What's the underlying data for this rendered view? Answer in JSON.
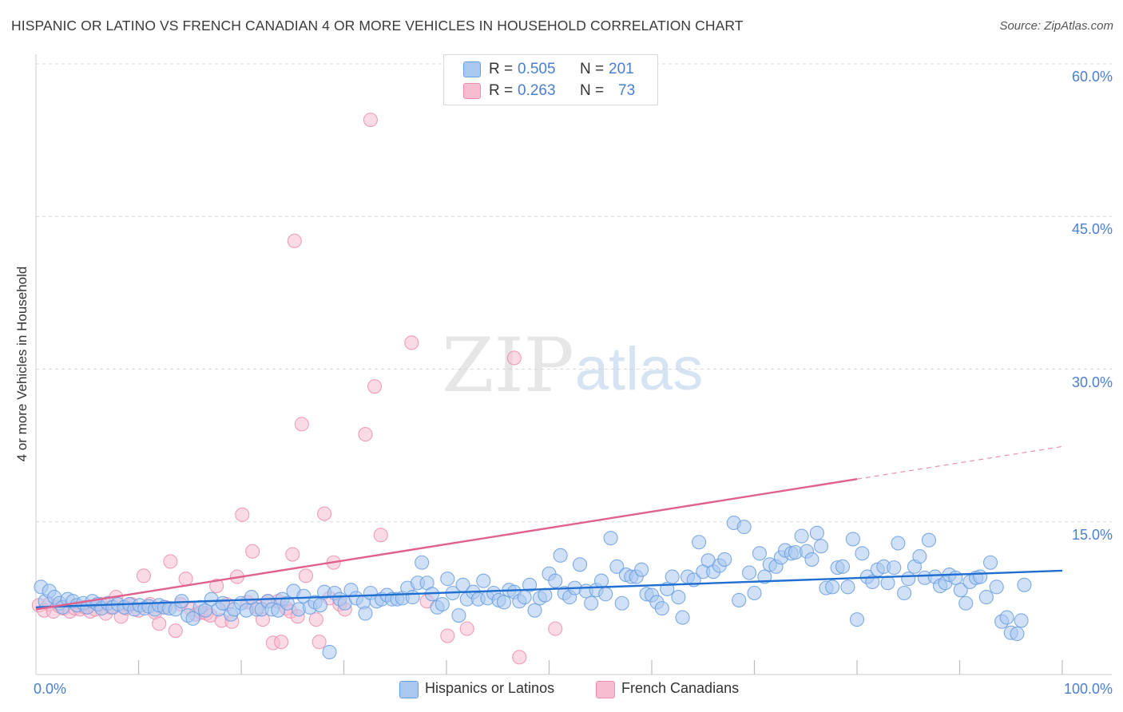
{
  "title": "HISPANIC OR LATINO VS FRENCH CANADIAN 4 OR MORE VEHICLES IN HOUSEHOLD CORRELATION CHART",
  "source": "Source: ZipAtlas.com",
  "watermark": {
    "zip": "ZIP",
    "atlas": "atlas"
  },
  "colors": {
    "blue_fill": "#a9c8f0",
    "blue_stroke": "#6a9ee0",
    "blue_line": "#1f6fd1",
    "pink_fill": "#f6bcd0",
    "pink_stroke": "#ec8fae",
    "pink_line": "#e0608e",
    "axis_text": "#4a7fcf",
    "grid": "#d9d9d9"
  },
  "legend_top": [
    {
      "r_label": "R =",
      "r_value": "0.505",
      "n_label": "N =",
      "n_value": "201"
    },
    {
      "r_label": "R =",
      "r_value": "0.263",
      "n_label": "N =",
      "n_value": "73"
    }
  ],
  "legend_bottom": [
    "Hispanics or Latinos",
    "French Canadians"
  ],
  "chart_data": {
    "type": "scatter",
    "title": "HISPANIC OR LATINO VS FRENCH CANADIAN 4 OR MORE VEHICLES IN HOUSEHOLD CORRELATION CHART",
    "xlabel": "",
    "ylabel": "4 or more Vehicles in Household",
    "xlim": [
      0,
      100
    ],
    "ylim": [
      0,
      60
    ],
    "y_ticks": [
      15,
      30,
      45,
      60
    ],
    "y_tick_labels": [
      "15.0%",
      "30.0%",
      "45.0%",
      "60.0%"
    ],
    "x_tick_labels": [
      "0.0%",
      "100.0%"
    ],
    "grid": true,
    "legend_placement": "top-center",
    "series": [
      {
        "name": "Hispanics or Latinos",
        "r": 0.505,
        "n": 201,
        "trend": {
          "x": [
            0,
            100
          ],
          "y": [
            6.6,
            10.2
          ],
          "solid_until": 100
        },
        "points": [
          [
            0.5,
            8.6
          ],
          [
            0.9,
            7.2
          ],
          [
            1.3,
            8.2
          ],
          [
            1.8,
            7.6
          ],
          [
            2.3,
            7.0
          ],
          [
            2.6,
            6.6
          ],
          [
            3.1,
            7.4
          ],
          [
            3.6,
            7.2
          ],
          [
            4.0,
            6.8
          ],
          [
            4.6,
            7.0
          ],
          [
            5.0,
            6.6
          ],
          [
            5.5,
            7.2
          ],
          [
            6.0,
            6.9
          ],
          [
            6.4,
            6.5
          ],
          [
            7.0,
            7.0
          ],
          [
            7.5,
            6.6
          ],
          [
            8.0,
            6.9
          ],
          [
            8.6,
            6.6
          ],
          [
            9.1,
            6.9
          ],
          [
            9.6,
            6.4
          ],
          [
            10.1,
            6.8
          ],
          [
            10.6,
            6.5
          ],
          [
            11.0,
            6.7
          ],
          [
            11.6,
            6.4
          ],
          [
            12.0,
            6.8
          ],
          [
            12.5,
            6.6
          ],
          [
            13.0,
            6.5
          ],
          [
            13.6,
            6.4
          ],
          [
            14.2,
            7.2
          ],
          [
            14.8,
            5.8
          ],
          [
            15.3,
            5.5
          ],
          [
            16.0,
            6.6
          ],
          [
            16.5,
            6.3
          ],
          [
            17.1,
            7.4
          ],
          [
            17.8,
            6.4
          ],
          [
            18.2,
            7.0
          ],
          [
            19.0,
            5.9
          ],
          [
            19.3,
            6.4
          ],
          [
            20.0,
            7.0
          ],
          [
            20.5,
            6.3
          ],
          [
            21.0,
            7.6
          ],
          [
            21.5,
            6.4
          ],
          [
            22.0,
            6.4
          ],
          [
            22.6,
            7.2
          ],
          [
            23.0,
            6.4
          ],
          [
            23.6,
            6.3
          ],
          [
            24.0,
            7.4
          ],
          [
            24.5,
            7.0
          ],
          [
            25.1,
            8.2
          ],
          [
            25.6,
            6.4
          ],
          [
            26.1,
            7.7
          ],
          [
            26.7,
            6.6
          ],
          [
            27.2,
            7.1
          ],
          [
            27.7,
            6.8
          ],
          [
            28.1,
            8.1
          ],
          [
            28.6,
            2.2
          ],
          [
            29.1,
            8.0
          ],
          [
            29.6,
            7.4
          ],
          [
            30.1,
            7.0
          ],
          [
            30.7,
            8.3
          ],
          [
            31.2,
            7.5
          ],
          [
            31.9,
            7.1
          ],
          [
            32.1,
            6.0
          ],
          [
            32.6,
            8.0
          ],
          [
            33.2,
            7.2
          ],
          [
            33.7,
            7.4
          ],
          [
            34.2,
            7.8
          ],
          [
            34.7,
            7.4
          ],
          [
            35.2,
            7.4
          ],
          [
            35.7,
            7.5
          ],
          [
            36.2,
            8.5
          ],
          [
            36.7,
            7.6
          ],
          [
            37.2,
            9.0
          ],
          [
            37.6,
            11.0
          ],
          [
            38.1,
            9.0
          ],
          [
            38.6,
            7.9
          ],
          [
            39.1,
            6.6
          ],
          [
            39.6,
            6.9
          ],
          [
            40.1,
            9.4
          ],
          [
            40.6,
            8.0
          ],
          [
            41.2,
            5.8
          ],
          [
            41.6,
            8.8
          ],
          [
            42.0,
            7.4
          ],
          [
            42.6,
            8.1
          ],
          [
            43.1,
            7.4
          ],
          [
            43.6,
            9.2
          ],
          [
            44.0,
            7.5
          ],
          [
            44.6,
            8.0
          ],
          [
            45.1,
            7.3
          ],
          [
            45.6,
            7.1
          ],
          [
            46.1,
            8.3
          ],
          [
            46.6,
            8.1
          ],
          [
            47.1,
            7.2
          ],
          [
            47.6,
            7.6
          ],
          [
            48.1,
            8.8
          ],
          [
            48.6,
            6.3
          ],
          [
            49.1,
            7.5
          ],
          [
            49.6,
            7.8
          ],
          [
            50.0,
            9.9
          ],
          [
            50.6,
            9.2
          ],
          [
            51.1,
            11.7
          ],
          [
            51.5,
            8.0
          ],
          [
            52.0,
            7.6
          ],
          [
            52.5,
            8.5
          ],
          [
            53.0,
            10.8
          ],
          [
            53.6,
            8.2
          ],
          [
            54.1,
            7.0
          ],
          [
            54.6,
            8.3
          ],
          [
            55.1,
            9.2
          ],
          [
            55.5,
            7.9
          ],
          [
            56.0,
            13.4
          ],
          [
            56.6,
            10.6
          ],
          [
            57.1,
            7.0
          ],
          [
            57.5,
            9.8
          ],
          [
            58.0,
            9.6
          ],
          [
            58.5,
            9.6
          ],
          [
            59.0,
            10.3
          ],
          [
            59.5,
            7.9
          ],
          [
            60.0,
            7.8
          ],
          [
            60.5,
            7.1
          ],
          [
            61.0,
            6.5
          ],
          [
            61.5,
            8.4
          ],
          [
            62.0,
            9.6
          ],
          [
            62.6,
            7.6
          ],
          [
            63.0,
            5.6
          ],
          [
            63.5,
            9.6
          ],
          [
            64.1,
            9.3
          ],
          [
            64.6,
            13.0
          ],
          [
            65.0,
            10.1
          ],
          [
            65.5,
            11.2
          ],
          [
            66.0,
            10.1
          ],
          [
            66.6,
            10.7
          ],
          [
            67.1,
            11.3
          ],
          [
            68.0,
            14.9
          ],
          [
            68.5,
            7.3
          ],
          [
            69.0,
            14.5
          ],
          [
            69.5,
            10.0
          ],
          [
            70.0,
            8.0
          ],
          [
            70.5,
            11.9
          ],
          [
            71.0,
            9.6
          ],
          [
            71.5,
            10.8
          ],
          [
            72.1,
            10.6
          ],
          [
            72.6,
            11.5
          ],
          [
            73.0,
            12.2
          ],
          [
            73.6,
            11.9
          ],
          [
            74.0,
            12.0
          ],
          [
            74.6,
            13.6
          ],
          [
            75.1,
            12.1
          ],
          [
            75.6,
            11.3
          ],
          [
            76.1,
            13.9
          ],
          [
            76.5,
            12.6
          ],
          [
            77.0,
            8.5
          ],
          [
            77.6,
            8.6
          ],
          [
            78.1,
            10.5
          ],
          [
            78.6,
            10.6
          ],
          [
            79.1,
            8.6
          ],
          [
            79.6,
            13.3
          ],
          [
            80.0,
            5.4
          ],
          [
            80.5,
            11.9
          ],
          [
            81.0,
            9.6
          ],
          [
            81.5,
            9.1
          ],
          [
            82.0,
            10.3
          ],
          [
            82.6,
            10.6
          ],
          [
            83.0,
            9.0
          ],
          [
            83.6,
            10.5
          ],
          [
            84.0,
            12.9
          ],
          [
            84.6,
            8.0
          ],
          [
            85.0,
            9.4
          ],
          [
            85.6,
            10.6
          ],
          [
            86.1,
            11.6
          ],
          [
            86.6,
            9.5
          ],
          [
            87.0,
            13.2
          ],
          [
            87.6,
            9.6
          ],
          [
            88.1,
            8.7
          ],
          [
            88.6,
            9.0
          ],
          [
            89.0,
            9.8
          ],
          [
            89.6,
            9.5
          ],
          [
            90.1,
            8.3
          ],
          [
            90.6,
            7.0
          ],
          [
            91.0,
            9.1
          ],
          [
            91.6,
            9.5
          ],
          [
            92.0,
            9.6
          ],
          [
            92.6,
            7.6
          ],
          [
            93.0,
            11.0
          ],
          [
            93.6,
            8.6
          ],
          [
            94.1,
            5.2
          ],
          [
            94.6,
            5.6
          ],
          [
            95.0,
            4.1
          ],
          [
            95.6,
            4.0
          ],
          [
            96.0,
            5.3
          ],
          [
            96.3,
            8.8
          ]
        ]
      },
      {
        "name": "French Canadians",
        "r": 0.263,
        "n": 73,
        "trend": {
          "x": [
            0,
            100
          ],
          "y": [
            6.4,
            22.4
          ],
          "solid_until": 80
        },
        "points": [
          [
            0.3,
            6.8
          ],
          [
            0.8,
            6.3
          ],
          [
            1.3,
            6.9
          ],
          [
            1.7,
            6.2
          ],
          [
            2.3,
            6.7
          ],
          [
            2.7,
            6.5
          ],
          [
            3.3,
            6.2
          ],
          [
            3.8,
            6.5
          ],
          [
            4.3,
            6.4
          ],
          [
            4.8,
            6.6
          ],
          [
            5.3,
            6.2
          ],
          [
            5.8,
            6.4
          ],
          [
            6.3,
            6.9
          ],
          [
            6.8,
            6.0
          ],
          [
            7.3,
            6.6
          ],
          [
            7.8,
            7.6
          ],
          [
            8.3,
            5.7
          ],
          [
            8.8,
            6.5
          ],
          [
            9.3,
            6.9
          ],
          [
            10.0,
            6.3
          ],
          [
            10.5,
            9.7
          ],
          [
            11.1,
            6.9
          ],
          [
            11.6,
            6.1
          ],
          [
            12.0,
            5.0
          ],
          [
            12.6,
            6.6
          ],
          [
            13.1,
            11.1
          ],
          [
            13.6,
            4.3
          ],
          [
            14.1,
            6.9
          ],
          [
            14.6,
            9.4
          ],
          [
            15.1,
            6.4
          ],
          [
            15.6,
            5.9
          ],
          [
            16.1,
            6.1
          ],
          [
            16.6,
            6.0
          ],
          [
            17.0,
            5.8
          ],
          [
            17.6,
            8.7
          ],
          [
            18.1,
            5.3
          ],
          [
            18.6,
            6.9
          ],
          [
            19.1,
            5.2
          ],
          [
            19.6,
            9.6
          ],
          [
            20.1,
            15.7
          ],
          [
            20.6,
            7.1
          ],
          [
            21.1,
            12.1
          ],
          [
            21.6,
            6.6
          ],
          [
            22.1,
            5.4
          ],
          [
            22.6,
            7.2
          ],
          [
            23.1,
            3.1
          ],
          [
            23.6,
            7.2
          ],
          [
            23.9,
            3.2
          ],
          [
            24.4,
            6.5
          ],
          [
            24.8,
            6.2
          ],
          [
            25.0,
            11.8
          ],
          [
            25.2,
            42.6
          ],
          [
            25.5,
            5.7
          ],
          [
            25.9,
            24.6
          ],
          [
            26.3,
            9.7
          ],
          [
            27.3,
            5.4
          ],
          [
            27.6,
            3.2
          ],
          [
            28.1,
            15.8
          ],
          [
            28.6,
            7.5
          ],
          [
            29.0,
            11.0
          ],
          [
            29.6,
            6.9
          ],
          [
            30.1,
            6.4
          ],
          [
            32.1,
            23.6
          ],
          [
            32.6,
            54.5
          ],
          [
            33.0,
            28.3
          ],
          [
            33.6,
            13.7
          ],
          [
            36.6,
            32.6
          ],
          [
            38.1,
            7.2
          ],
          [
            40.1,
            3.8
          ],
          [
            42.0,
            4.5
          ],
          [
            46.6,
            31.1
          ],
          [
            47.1,
            1.7
          ],
          [
            50.6,
            4.5
          ]
        ]
      }
    ]
  }
}
